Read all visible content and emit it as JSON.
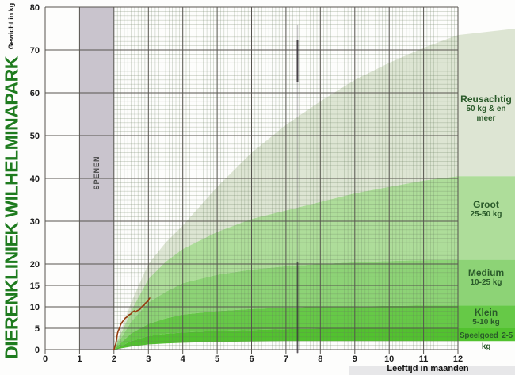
{
  "title": "DIERENKLINIEK WILHELMINAPARK",
  "y_axis": {
    "label": "Gewicht in kg",
    "ticks": [
      80,
      70,
      60,
      50,
      40,
      30,
      20,
      15,
      10,
      5,
      0
    ]
  },
  "x_axis": {
    "label": "Leeftijd in maanden",
    "ticks": [
      0,
      1,
      2,
      3,
      4,
      5,
      6,
      7,
      8,
      9,
      10,
      11,
      12
    ]
  },
  "weaning_band": {
    "label": "SPENEN",
    "from_month": 1,
    "to_month": 2,
    "color": "#c9c4cd"
  },
  "categories": [
    {
      "name": "Reusachtig",
      "range": "50 kg & en meer",
      "color": "#dde5d3"
    },
    {
      "name": "Groot",
      "range": "25-50 kg",
      "color": "#aedd9a"
    },
    {
      "name": "Medium",
      "range": "10-25 kg",
      "color": "#8dd376"
    },
    {
      "name": "Klein",
      "range": "5-10 kg",
      "color": "#66c947"
    },
    {
      "name": "Speelgoed",
      "range": "2-5 kg",
      "color": "#52c22f"
    }
  ],
  "colors": {
    "title_text": "#1e7b1e",
    "legend_text": "#2a5a2a",
    "measured_line": "#953c10",
    "grid_major": "#56544e",
    "grid_minor": "rgba(105,125,95,0.40)"
  },
  "chart_data": {
    "type": "area",
    "title": "",
    "xlabel": "Leeftijd in maanden",
    "ylabel": "Gewicht in kg",
    "xlim": [
      0,
      12
    ],
    "ylim": [
      0,
      80
    ],
    "x_ticks": [
      0,
      1,
      2,
      3,
      4,
      5,
      6,
      7,
      8,
      9,
      10,
      11,
      12
    ],
    "y_ticks": [
      0,
      5,
      10,
      15,
      20,
      30,
      40,
      50,
      60,
      70,
      80
    ],
    "grid": true,
    "legend_position": "right",
    "band_x_months": [
      2,
      2.5,
      3,
      3.5,
      4,
      5,
      6,
      7,
      8,
      9,
      10,
      11,
      12
    ],
    "band_boundaries": [
      [
        0,
        11.0,
        20.0,
        25.0,
        29.0,
        38.0,
        46.0,
        52.5,
        58.0,
        63.0,
        67.0,
        70.5,
        73.5
      ],
      [
        0,
        9.0,
        16.5,
        20.5,
        23.5,
        27.5,
        30.5,
        32.5,
        34.5,
        36.5,
        38.0,
        39.5,
        40.5
      ],
      [
        0,
        6.5,
        11.0,
        13.5,
        15.5,
        17.5,
        18.7,
        19.5,
        20.0,
        20.4,
        20.7,
        20.9,
        21.0
      ],
      [
        0,
        3.8,
        6.0,
        7.3,
        8.2,
        9.0,
        9.5,
        9.8,
        10.0,
        10.1,
        10.2,
        10.3,
        10.3
      ],
      [
        0,
        2.0,
        3.2,
        3.7,
        4.0,
        4.4,
        4.6,
        4.8,
        4.9,
        5.0,
        5.0,
        5.0,
        5.0
      ],
      [
        0,
        0.7,
        1.2,
        1.45,
        1.6,
        1.8,
        1.9,
        2.0,
        2.0,
        2.0,
        2.0,
        2.0,
        2.0
      ]
    ],
    "measured_line": {
      "points": [
        [
          2.0,
          0.0
        ],
        [
          2.03,
          0.74
        ],
        [
          2.05,
          1.3
        ],
        [
          2.07,
          2.04
        ],
        [
          2.1,
          3.7
        ],
        [
          2.12,
          4.26
        ],
        [
          2.15,
          4.81
        ],
        [
          2.19,
          5.74
        ],
        [
          2.21,
          6.11
        ],
        [
          2.26,
          6.67
        ],
        [
          2.3,
          7.04
        ],
        [
          2.33,
          7.41
        ],
        [
          2.37,
          7.59
        ],
        [
          2.42,
          7.96
        ],
        [
          2.44,
          8.15
        ],
        [
          2.49,
          8.33
        ],
        [
          2.53,
          8.7
        ],
        [
          2.56,
          8.89
        ],
        [
          2.6,
          9.07
        ],
        [
          2.64,
          8.8
        ],
        [
          2.67,
          9.07
        ],
        [
          2.72,
          9.26
        ],
        [
          2.76,
          9.44
        ],
        [
          2.79,
          9.81
        ],
        [
          2.83,
          10.19
        ],
        [
          2.88,
          10.37
        ],
        [
          2.9,
          10.74
        ],
        [
          2.95,
          11.11
        ],
        [
          2.99,
          11.3
        ],
        [
          3.02,
          11.85
        ],
        [
          3.04,
          12.04
        ]
      ]
    }
  }
}
